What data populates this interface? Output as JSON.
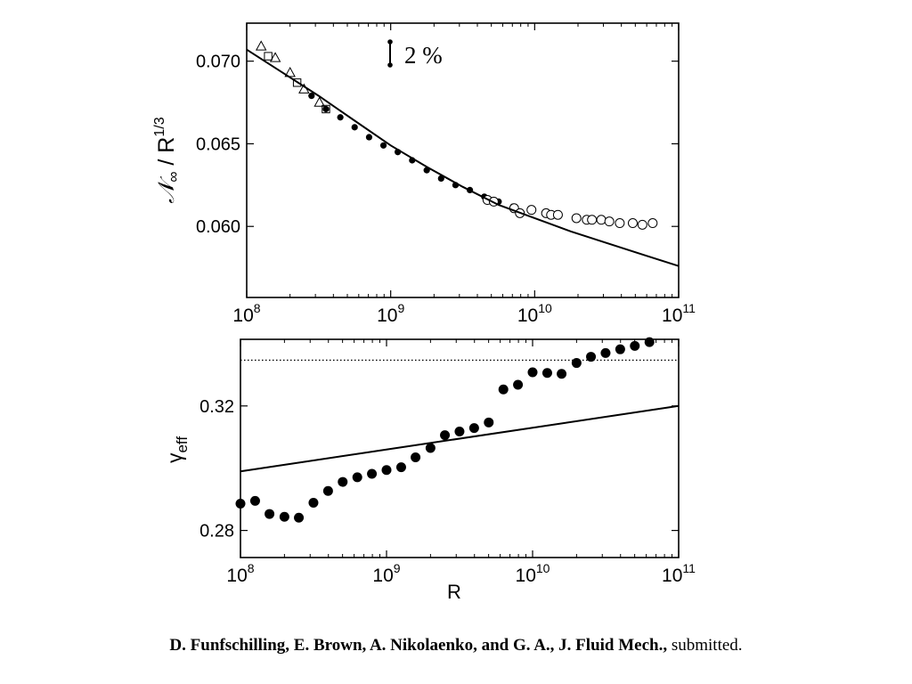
{
  "chart_data": [
    {
      "type": "scatter",
      "ylabel_main": "𝒩",
      "ylabel_sub": "∞",
      "ylabel_rest": " / R",
      "ylabel_sup": "1/3",
      "xscale": "log",
      "xlim": [
        100000000.0,
        100000000000.0
      ],
      "ylim": [
        0.0557,
        0.0723
      ],
      "x_ticks": [
        {
          "base": "10",
          "exp": "8"
        },
        {
          "base": "10",
          "exp": "9"
        },
        {
          "base": "10",
          "exp": "10"
        },
        {
          "base": "10",
          "exp": "11"
        }
      ],
      "x_tick_values": [
        100000000.0,
        1000000000.0,
        10000000000.0,
        100000000000.0
      ],
      "y_ticks": [
        "0.060",
        "0.065",
        "0.070"
      ],
      "y_tick_values": [
        0.06,
        0.065,
        0.07
      ],
      "scale_bar_label": "2 %",
      "series": [
        {
          "marker": "open-triangle",
          "x": [
            126000000.0,
            158000000.0,
            200000000.0,
            250000000.0,
            320000000.0
          ],
          "y": [
            0.0709,
            0.0702,
            0.0693,
            0.0683,
            0.0675
          ]
        },
        {
          "marker": "open-square",
          "x": [
            141000000.0,
            224000000.0,
            355000000.0
          ],
          "y": [
            0.0703,
            0.0687,
            0.0671
          ]
        },
        {
          "marker": "filled-circle",
          "x": [
            282000000.0,
            355000000.0,
            447000000.0,
            562000000.0,
            708000000.0,
            891000000.0,
            1120000000.0,
            1410000000.0,
            1780000000.0,
            2240000000.0,
            2820000000.0,
            3550000000.0,
            4470000000.0,
            5620000000.0,
            7080000000.0
          ],
          "y": [
            0.0679,
            0.0671,
            0.0666,
            0.066,
            0.0654,
            0.0649,
            0.0645,
            0.064,
            0.0634,
            0.0629,
            0.0625,
            0.0622,
            0.0618,
            0.0615,
            0.0612
          ]
        },
        {
          "marker": "open-circle",
          "x": [
            4700000000.0,
            5200000000.0,
            7200000000.0,
            7900000000.0,
            9500000000.0,
            12000000000.0,
            13000000000.0,
            14500000000.0,
            19500000000.0,
            23000000000.0,
            25000000000.0,
            29000000000.0,
            33000000000.0,
            39000000000.0,
            48000000000.0,
            56000000000.0,
            66000000000.0
          ],
          "y": [
            0.0616,
            0.0615,
            0.0611,
            0.0608,
            0.061,
            0.0608,
            0.0607,
            0.0607,
            0.0605,
            0.0604,
            0.0604,
            0.0604,
            0.0603,
            0.0602,
            0.0602,
            0.0601,
            0.0602
          ]
        },
        {
          "marker": "line",
          "x": [
            100000000.0,
            178000000.0,
            316000000.0,
            562000000.0,
            1000000000.0,
            1780000000.0,
            3160000000.0,
            5620000000.0,
            10000000000.0,
            17800000000.0,
            31600000000.0,
            56200000000.0,
            100000000000.0
          ],
          "y": [
            0.0707,
            0.0693,
            0.0679,
            0.0664,
            0.0649,
            0.0636,
            0.0624,
            0.0613,
            0.0605,
            0.0597,
            0.059,
            0.0583,
            0.0576
          ]
        }
      ]
    },
    {
      "type": "scatter",
      "xlabel": "R",
      "ylabel_main": "γ",
      "ylabel_sub": "eff",
      "xscale": "log",
      "xlim": [
        100000000.0,
        100000000000.0
      ],
      "ylim": [
        0.2713,
        0.3414
      ],
      "x_ticks": [
        {
          "base": "10",
          "exp": "8"
        },
        {
          "base": "10",
          "exp": "9"
        },
        {
          "base": "10",
          "exp": "10"
        },
        {
          "base": "10",
          "exp": "11"
        }
      ],
      "x_tick_values": [
        100000000.0,
        1000000000.0,
        10000000000.0,
        100000000000.0
      ],
      "y_ticks": [
        "0.28",
        "0.32"
      ],
      "y_tick_values": [
        0.28,
        0.32
      ],
      "reference_line_y": 0.3347,
      "series": [
        {
          "marker": "filled-circle",
          "x": [
            100000000.0,
            126000000.0,
            158000000.0,
            200000000.0,
            251000000.0,
            316000000.0,
            398000000.0,
            501000000.0,
            631000000.0,
            794000000.0,
            1000000000.0,
            1260000000.0,
            1580000000.0,
            2000000000.0,
            2510000000.0,
            3160000000.0,
            3980000000.0,
            5010000000.0,
            6310000000.0,
            7940000000.0,
            10000000000.0,
            12600000000.0,
            15800000000.0,
            20000000000.0,
            25100000000.0,
            31600000000.0,
            39800000000.0,
            50100000000.0,
            63100000000.0
          ],
          "y": [
            0.2886,
            0.2895,
            0.2853,
            0.2844,
            0.2841,
            0.2889,
            0.2927,
            0.2956,
            0.2971,
            0.2982,
            0.2994,
            0.3003,
            0.3035,
            0.3065,
            0.3106,
            0.3118,
            0.3129,
            0.3147,
            0.3253,
            0.3268,
            0.3308,
            0.3306,
            0.3303,
            0.3338,
            0.3358,
            0.337,
            0.3382,
            0.3393,
            0.3405
          ]
        },
        {
          "marker": "line",
          "x": [
            100000000.0,
            100000000000.0
          ],
          "y": [
            0.299,
            0.32
          ]
        }
      ]
    }
  ],
  "citation": {
    "authors_journal": "D. Funfschilling, E. Brown, A. Nikolaenko, and G. A., J. Fluid Mech.,",
    "status": " submitted."
  }
}
